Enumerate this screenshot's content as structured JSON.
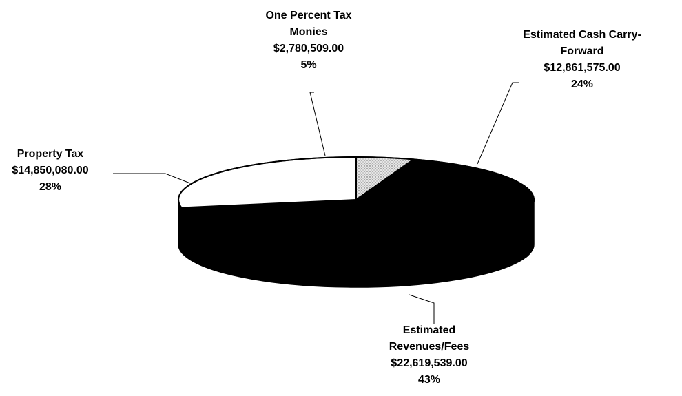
{
  "chart_data": {
    "type": "pie",
    "style": "3d-exploded-off",
    "slices": [
      {
        "id": "one-percent",
        "label_lines": [
          "One Percent Tax",
          "Monies"
        ],
        "amount": "$2,780,509.00",
        "percent": "5%",
        "value": 2780509.0,
        "fill": "#dcdcdc",
        "pattern": "dots"
      },
      {
        "id": "cash-carry",
        "label_lines": [
          "Estimated Cash Carry-",
          "Forward"
        ],
        "amount": "$12,861,575.00",
        "percent": "24%",
        "value": 12861575.0,
        "fill": "#000000",
        "pattern": "none"
      },
      {
        "id": "revenues",
        "label_lines": [
          "Estimated",
          "Revenues/Fees"
        ],
        "amount": "$22,619,539.00",
        "percent": "43%",
        "value": 22619539.0,
        "fill": "#000000",
        "pattern": "none"
      },
      {
        "id": "property",
        "label_lines": [
          "Property Tax"
        ],
        "amount": "$14,850,080.00",
        "percent": "28%",
        "value": 14850080.0,
        "fill": "#ffffff",
        "pattern": "none"
      }
    ],
    "legend": "none",
    "title": ""
  }
}
